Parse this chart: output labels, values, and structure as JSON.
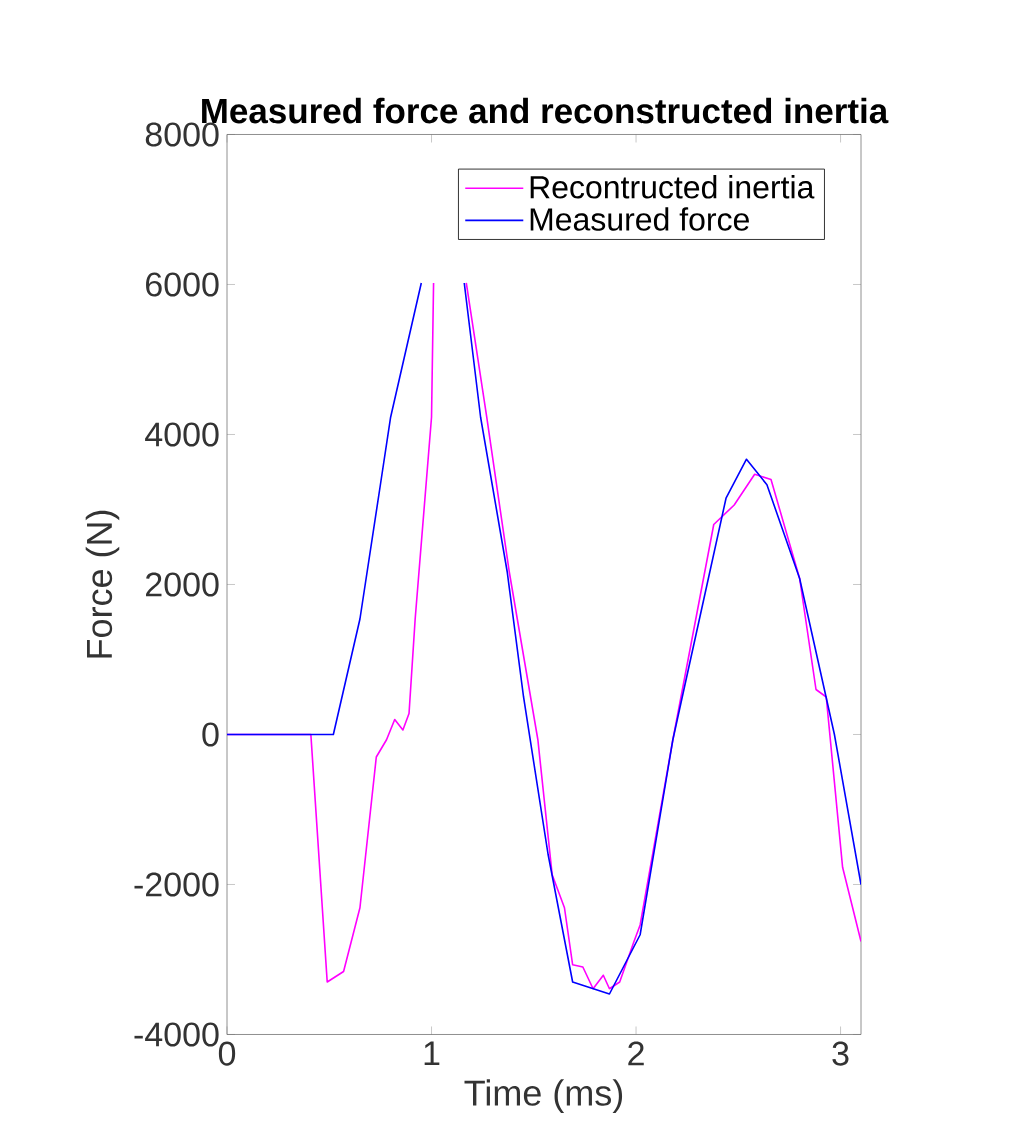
{
  "chart_data": {
    "type": "line",
    "title": "Measured force and reconstructed inertia",
    "xlabel": "Time (ms)",
    "ylabel": "Force (N)",
    "xlim": [
      0,
      3.1
    ],
    "ylim": [
      -4000,
      8000
    ],
    "xticks": [
      0,
      1,
      2,
      3
    ],
    "yticks": [
      -4000,
      -2000,
      0,
      2000,
      4000,
      6000,
      8000
    ],
    "legend": "top right",
    "grid": false,
    "line_style": "solid",
    "marker": "none",
    "series": [
      {
        "name": "Recontructed inertia",
        "color": "#ff00ff",
        "x": [
          0,
          0.41,
          0.49,
          0.57,
          0.65,
          0.73,
          0.78,
          0.82,
          0.86,
          0.89,
          0.92,
          1.0,
          1.01,
          1.1,
          1.17,
          1.27,
          1.38,
          1.52,
          1.59,
          1.65,
          1.69,
          1.74,
          1.79,
          1.84,
          1.87,
          1.92,
          1.99,
          2.02,
          2.18,
          2.38,
          2.48,
          2.58,
          2.66,
          2.8,
          2.88,
          2.93,
          3.01,
          3.1
        ],
        "values": [
          0,
          0,
          -3300,
          -3160,
          -2310,
          -300,
          -70,
          200,
          60,
          280,
          1540,
          4230,
          6020,
          null,
          6020,
          4230,
          2170,
          -70,
          -1870,
          -2310,
          -3070,
          -3100,
          -3390,
          -3210,
          -3390,
          -3300,
          -2760,
          -2540,
          -70,
          2800,
          3060,
          3470,
          3400,
          2080,
          600,
          500,
          -1770,
          -2760
        ]
      },
      {
        "name": "Measured force",
        "color": "#0000ff",
        "x": [
          0,
          0.52,
          0.65,
          0.75,
          0.8,
          0.95,
          1.05,
          1.16,
          1.24,
          1.37,
          1.45,
          1.57,
          1.69,
          1.87,
          2.02,
          2.18,
          2.31,
          2.44,
          2.54,
          2.64,
          2.8,
          2.97,
          3.1
        ],
        "values": [
          0,
          0,
          1540,
          3330,
          4230,
          6020,
          null,
          6020,
          4230,
          2170,
          500,
          -1600,
          -3300,
          -3460,
          -2670,
          -70,
          1540,
          3150,
          3670,
          3330,
          2080,
          0,
          -2000
        ]
      }
    ]
  }
}
